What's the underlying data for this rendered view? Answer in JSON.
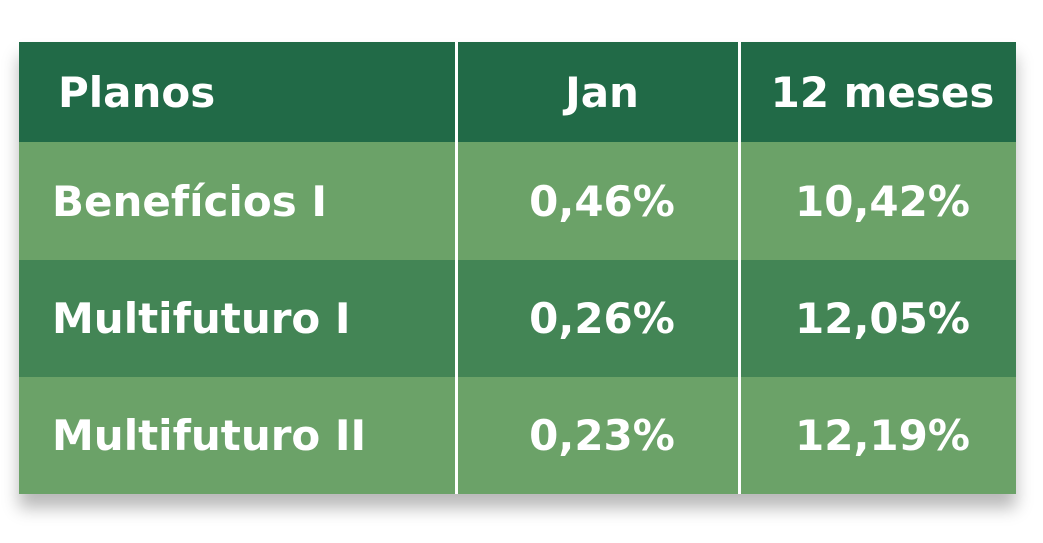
{
  "table": {
    "header": [
      "Planos",
      "Jan",
      "12 meses"
    ],
    "rows": [
      [
        "Benefícios I",
        "0,46%",
        "10,42%"
      ],
      [
        "Multifuturo I",
        "0,26%",
        "12,05%"
      ],
      [
        "Multifuturo II",
        "0,23%",
        "12,19%"
      ]
    ]
  }
}
